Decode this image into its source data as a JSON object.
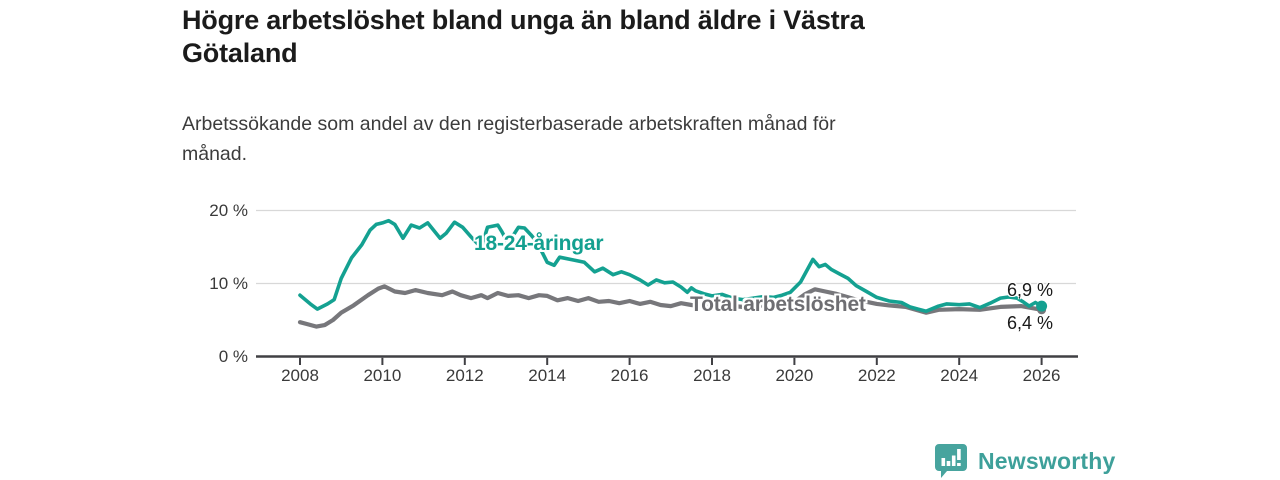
{
  "header": {
    "title": "Högre arbetslöshet bland unga än bland äldre i Västra\nGötaland",
    "subtitle": "Arbetssökande som andel av den registerbaserade arbetskraften månad för\nmånad."
  },
  "chart_data": {
    "type": "line",
    "title": "Högre arbetslöshet bland unga än bland äldre i Västra Götaland",
    "subtitle": "Arbetssökande som andel av den registerbaserade arbetskraften månad för månad.",
    "grid": "horizontal",
    "legend_position": "inline-labels",
    "x_axis": {
      "ticks": [
        "2008",
        "2010",
        "2012",
        "2014",
        "2016",
        "2018",
        "2020",
        "2022",
        "2024",
        "2026"
      ],
      "range": [
        2008,
        2026
      ]
    },
    "y_axis": {
      "unit": "%",
      "range": [
        0,
        21
      ],
      "ticks": [
        {
          "value": 20,
          "label": "20 %"
        },
        {
          "value": 10,
          "label": "10 %"
        },
        {
          "value": 0,
          "label": "0 %"
        }
      ]
    },
    "series": [
      {
        "name": "18-24-åringar",
        "color": "#14a191",
        "end_label": "6,9 %",
        "end_value": 6.9,
        "points": [
          [
            2008.0,
            8.4
          ],
          [
            2008.25,
            7.2
          ],
          [
            2008.42,
            6.5
          ],
          [
            2008.67,
            7.2
          ],
          [
            2008.83,
            7.8
          ],
          [
            2009.0,
            10.7
          ],
          [
            2009.25,
            13.5
          ],
          [
            2009.5,
            15.3
          ],
          [
            2009.7,
            17.3
          ],
          [
            2009.85,
            18.1
          ],
          [
            2010.0,
            18.3
          ],
          [
            2010.15,
            18.6
          ],
          [
            2010.3,
            18.1
          ],
          [
            2010.5,
            16.2
          ],
          [
            2010.7,
            18.0
          ],
          [
            2010.9,
            17.6
          ],
          [
            2011.1,
            18.3
          ],
          [
            2011.4,
            16.2
          ],
          [
            2011.55,
            16.9
          ],
          [
            2011.75,
            18.4
          ],
          [
            2011.95,
            17.7
          ],
          [
            2012.15,
            16.4
          ],
          [
            2012.4,
            14.9
          ],
          [
            2012.55,
            17.7
          ],
          [
            2012.8,
            18.0
          ],
          [
            2012.9,
            17.1
          ],
          [
            2013.05,
            15.5
          ],
          [
            2013.3,
            17.7
          ],
          [
            2013.45,
            17.6
          ],
          [
            2013.6,
            16.7
          ],
          [
            2013.75,
            15.7
          ],
          [
            2014.0,
            12.9
          ],
          [
            2014.17,
            12.5
          ],
          [
            2014.3,
            13.6
          ],
          [
            2014.65,
            13.2
          ],
          [
            2014.9,
            12.9
          ],
          [
            2015.15,
            11.6
          ],
          [
            2015.35,
            12.1
          ],
          [
            2015.6,
            11.2
          ],
          [
            2015.8,
            11.6
          ],
          [
            2016.0,
            11.2
          ],
          [
            2016.25,
            10.5
          ],
          [
            2016.45,
            9.8
          ],
          [
            2016.65,
            10.5
          ],
          [
            2016.85,
            10.1
          ],
          [
            2017.05,
            10.2
          ],
          [
            2017.25,
            9.5
          ],
          [
            2017.4,
            8.8
          ],
          [
            2017.5,
            9.4
          ],
          [
            2017.6,
            9.0
          ],
          [
            2017.8,
            8.6
          ],
          [
            2018.0,
            8.3
          ],
          [
            2018.25,
            8.5
          ],
          [
            2018.5,
            8.0
          ],
          [
            2018.75,
            7.8
          ],
          [
            2019.0,
            8.0
          ],
          [
            2019.25,
            8.2
          ],
          [
            2019.5,
            8.1
          ],
          [
            2019.7,
            8.4
          ],
          [
            2019.9,
            8.8
          ],
          [
            2020.15,
            10.2
          ],
          [
            2020.45,
            13.3
          ],
          [
            2020.6,
            12.3
          ],
          [
            2020.75,
            12.6
          ],
          [
            2020.9,
            11.9
          ],
          [
            2021.1,
            11.3
          ],
          [
            2021.3,
            10.7
          ],
          [
            2021.5,
            9.7
          ],
          [
            2021.75,
            8.9
          ],
          [
            2022.0,
            8.1
          ],
          [
            2022.3,
            7.6
          ],
          [
            2022.6,
            7.4
          ],
          [
            2022.8,
            6.8
          ],
          [
            2023.0,
            6.5
          ],
          [
            2023.2,
            6.2
          ],
          [
            2023.5,
            6.9
          ],
          [
            2023.7,
            7.2
          ],
          [
            2024.0,
            7.1
          ],
          [
            2024.25,
            7.2
          ],
          [
            2024.5,
            6.7
          ],
          [
            2024.75,
            7.3
          ],
          [
            2025.0,
            8.0
          ],
          [
            2025.2,
            8.15
          ],
          [
            2025.4,
            8.0
          ],
          [
            2025.55,
            7.5
          ],
          [
            2025.7,
            6.9
          ],
          [
            2025.85,
            7.4
          ],
          [
            2026.0,
            6.9
          ]
        ]
      },
      {
        "name": "Total arbetslöshet",
        "color": "#77777b",
        "end_label": "6,4 %",
        "end_value": 6.4,
        "points": [
          [
            2008.0,
            4.7
          ],
          [
            2008.2,
            4.4
          ],
          [
            2008.4,
            4.1
          ],
          [
            2008.6,
            4.3
          ],
          [
            2008.8,
            5.0
          ],
          [
            2009.0,
            6.0
          ],
          [
            2009.3,
            7.0
          ],
          [
            2009.65,
            8.4
          ],
          [
            2009.9,
            9.3
          ],
          [
            2010.05,
            9.6
          ],
          [
            2010.3,
            8.9
          ],
          [
            2010.55,
            8.7
          ],
          [
            2010.8,
            9.1
          ],
          [
            2011.1,
            8.7
          ],
          [
            2011.45,
            8.4
          ],
          [
            2011.7,
            8.9
          ],
          [
            2011.9,
            8.4
          ],
          [
            2012.15,
            8.0
          ],
          [
            2012.4,
            8.4
          ],
          [
            2012.55,
            8.0
          ],
          [
            2012.8,
            8.7
          ],
          [
            2013.05,
            8.3
          ],
          [
            2013.3,
            8.4
          ],
          [
            2013.55,
            8.0
          ],
          [
            2013.8,
            8.4
          ],
          [
            2014.0,
            8.3
          ],
          [
            2014.25,
            7.7
          ],
          [
            2014.5,
            8.0
          ],
          [
            2014.75,
            7.6
          ],
          [
            2015.0,
            8.0
          ],
          [
            2015.25,
            7.5
          ],
          [
            2015.5,
            7.6
          ],
          [
            2015.75,
            7.3
          ],
          [
            2016.0,
            7.6
          ],
          [
            2016.25,
            7.2
          ],
          [
            2016.5,
            7.5
          ],
          [
            2016.75,
            7.05
          ],
          [
            2017.0,
            6.9
          ],
          [
            2017.25,
            7.3
          ],
          [
            2017.5,
            7.05
          ],
          [
            2017.75,
            6.9
          ],
          [
            2018.0,
            7.0
          ],
          [
            2018.25,
            7.1
          ],
          [
            2018.5,
            6.9
          ],
          [
            2018.75,
            6.8
          ],
          [
            2019.0,
            6.9
          ],
          [
            2019.25,
            7.0
          ],
          [
            2019.5,
            7.1
          ],
          [
            2019.75,
            7.2
          ],
          [
            2020.0,
            7.5
          ],
          [
            2020.25,
            8.5
          ],
          [
            2020.5,
            9.2
          ],
          [
            2020.75,
            8.9
          ],
          [
            2021.0,
            8.6
          ],
          [
            2021.25,
            8.2
          ],
          [
            2021.5,
            7.8
          ],
          [
            2021.75,
            7.5
          ],
          [
            2022.0,
            7.2
          ],
          [
            2022.3,
            7.0
          ],
          [
            2022.7,
            6.8
          ],
          [
            2023.2,
            6.0
          ],
          [
            2023.5,
            6.4
          ],
          [
            2024.0,
            6.5
          ],
          [
            2024.5,
            6.4
          ],
          [
            2025.0,
            6.8
          ],
          [
            2025.5,
            6.9
          ],
          [
            2025.8,
            6.6
          ],
          [
            2026.0,
            6.4
          ]
        ]
      }
    ],
    "colors": {
      "accent_teal": "#14a191",
      "series_gray": "#77777b",
      "axis": "#404044",
      "gridline": "#d8d8d8",
      "logo_teal": "#47a49e"
    }
  },
  "footer": {
    "brand": "Newsworthy"
  }
}
